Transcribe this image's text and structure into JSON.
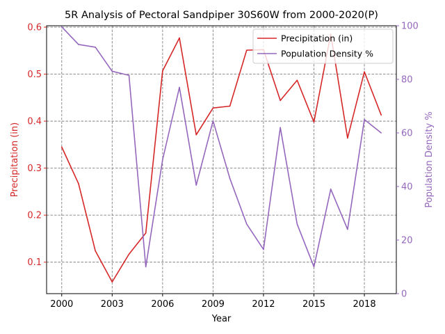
{
  "chart_data": {
    "type": "line",
    "title": "5R Analysis of Pectoral Sandpiper 30S60W from 2000-2020(P)",
    "xlabel": "Year",
    "ylabel_left": "Precipitation (in)",
    "ylabel_right": "Population Density %",
    "x": [
      2000,
      2001,
      2002,
      2003,
      2004,
      2005,
      2006,
      2007,
      2008,
      2009,
      2010,
      2011,
      2012,
      2013,
      2014,
      2015,
      2016,
      2017,
      2018,
      2019
    ],
    "xlim": [
      1999.1,
      2019.9
    ],
    "x_ticks": [
      2000,
      2003,
      2006,
      2009,
      2012,
      2015,
      2018
    ],
    "x_tick_labels": [
      "2000",
      "2003",
      "2006",
      "2009",
      "2012",
      "2015",
      "2018"
    ],
    "ylim_left": [
      0.033,
      0.603
    ],
    "y_ticks_left": [
      0.1,
      0.2,
      0.3,
      0.4,
      0.5,
      0.6
    ],
    "y_tick_labels_left": [
      "0.1",
      "0.2",
      "0.3",
      "0.4",
      "0.5",
      "0.6"
    ],
    "ylim_right": [
      0,
      100
    ],
    "y_ticks_right": [
      0,
      20,
      40,
      60,
      80,
      100
    ],
    "y_tick_labels_right": [
      "0",
      "20",
      "40",
      "60",
      "80",
      "100"
    ],
    "grid": true,
    "legend_position": "top-right",
    "series": [
      {
        "name": "Precipitation (in)",
        "axis": "left",
        "color": "#d62728",
        "values": [
          0.345,
          0.267,
          0.124,
          0.058,
          0.117,
          0.162,
          0.507,
          0.577,
          0.371,
          0.428,
          0.432,
          0.551,
          0.552,
          0.444,
          0.487,
          0.398,
          0.585,
          0.364,
          0.505,
          0.413
        ]
      },
      {
        "name": "Population Density %",
        "axis": "right",
        "color": "#9467bd",
        "values": [
          99.6,
          93,
          92,
          83,
          81.5,
          10,
          50,
          77,
          40.5,
          64.5,
          43,
          26,
          16.5,
          62,
          26,
          10,
          39,
          24,
          65,
          60
        ]
      }
    ],
    "colors": {
      "left_axis": "#d62728",
      "right_axis": "#9467bd",
      "grid": "#808080",
      "frame": "#000000"
    }
  }
}
